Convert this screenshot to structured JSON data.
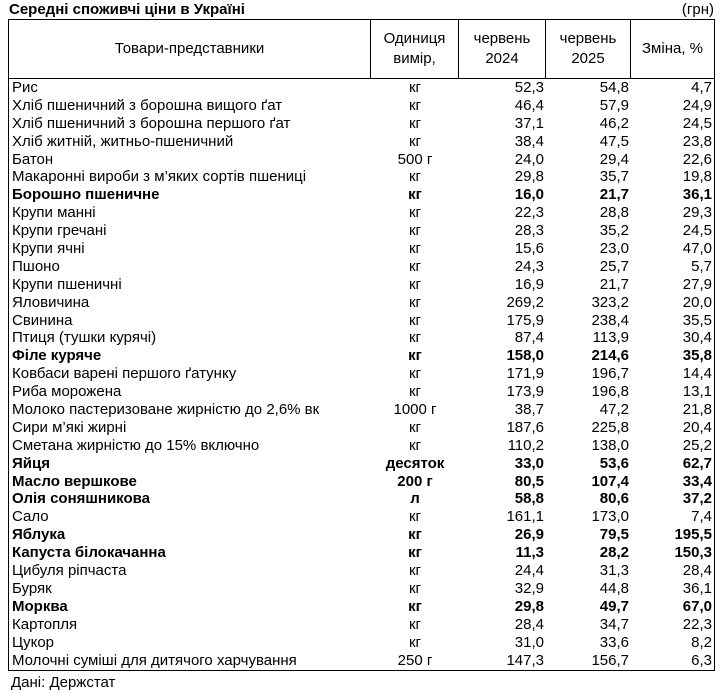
{
  "title": "Середні споживчі ціни в Україні",
  "currency_note": "(грн)",
  "headers": {
    "product": "Товари-представники",
    "unit": "Одиниця вимір,",
    "june2024": "червень 2024",
    "june2025": "червень 2025",
    "change": "Зміна, %"
  },
  "rows": [
    {
      "name": "Рис",
      "unit": "кг",
      "v2024": "52,3",
      "v2025": "54,8",
      "change": "4,7",
      "bold": false
    },
    {
      "name": "Хліб пшеничний з борошна вищого ґат",
      "unit": "кг",
      "v2024": "46,4",
      "v2025": "57,9",
      "change": "24,9",
      "bold": false
    },
    {
      "name": "Хліб пшеничний з борошна першого ґат",
      "unit": "кг",
      "v2024": "37,1",
      "v2025": "46,2",
      "change": "24,5",
      "bold": false
    },
    {
      "name": "Хліб житній, житньо-пшеничний",
      "unit": "кг",
      "v2024": "38,4",
      "v2025": "47,5",
      "change": "23,8",
      "bold": false
    },
    {
      "name": "Батон",
      "unit": "500 г",
      "v2024": "24,0",
      "v2025": "29,4",
      "change": "22,6",
      "bold": false
    },
    {
      "name": "Макаронні вироби з м’яких сортів пшениці",
      "unit": "кг",
      "v2024": "29,8",
      "v2025": "35,7",
      "change": "19,8",
      "bold": false
    },
    {
      "name": "Борошно пшеничне",
      "unit": "кг",
      "v2024": "16,0",
      "v2025": "21,7",
      "change": "36,1",
      "bold": true
    },
    {
      "name": "Крупи манні",
      "unit": "кг",
      "v2024": "22,3",
      "v2025": "28,8",
      "change": "29,3",
      "bold": false
    },
    {
      "name": "Крупи гречані",
      "unit": "кг",
      "v2024": "28,3",
      "v2025": "35,2",
      "change": "24,5",
      "bold": false
    },
    {
      "name": "Крупи ячні",
      "unit": "кг",
      "v2024": "15,6",
      "v2025": "23,0",
      "change": "47,0",
      "bold": false
    },
    {
      "name": "Пшоно",
      "unit": "кг",
      "v2024": "24,3",
      "v2025": "25,7",
      "change": "5,7",
      "bold": false
    },
    {
      "name": "Крупи пшеничні",
      "unit": "кг",
      "v2024": "16,9",
      "v2025": "21,7",
      "change": "27,9",
      "bold": false
    },
    {
      "name": "Яловичина",
      "unit": "кг",
      "v2024": "269,2",
      "v2025": "323,2",
      "change": "20,0",
      "bold": false
    },
    {
      "name": "Свинина",
      "unit": "кг",
      "v2024": "175,9",
      "v2025": "238,4",
      "change": "35,5",
      "bold": false
    },
    {
      "name": "Птиця (тушки курячі)",
      "unit": "кг",
      "v2024": "87,4",
      "v2025": "113,9",
      "change": "30,4",
      "bold": false
    },
    {
      "name": "Філе куряче",
      "unit": "кг",
      "v2024": "158,0",
      "v2025": "214,6",
      "change": "35,8",
      "bold": true
    },
    {
      "name": "Ковбаси варені першого ґатунку",
      "unit": "кг",
      "v2024": "171,9",
      "v2025": "196,7",
      "change": "14,4",
      "bold": false
    },
    {
      "name": "Риба морожена",
      "unit": "кг",
      "v2024": "173,9",
      "v2025": "196,8",
      "change": "13,1",
      "bold": false
    },
    {
      "name": "Молоко пастеризоване жирністю до 2,6% вк",
      "unit": "1000 г",
      "v2024": "38,7",
      "v2025": "47,2",
      "change": "21,8",
      "bold": false
    },
    {
      "name": "Сири м’які жирні",
      "unit": "кг",
      "v2024": "187,6",
      "v2025": "225,8",
      "change": "20,4",
      "bold": false
    },
    {
      "name": "Сметана жирністю до 15% включно",
      "unit": "кг",
      "v2024": "110,2",
      "v2025": "138,0",
      "change": "25,2",
      "bold": false
    },
    {
      "name": "Яйця",
      "unit": "десяток",
      "v2024": "33,0",
      "v2025": "53,6",
      "change": "62,7",
      "bold": true
    },
    {
      "name": "Масло вершкове",
      "unit": "200 г",
      "v2024": "80,5",
      "v2025": "107,4",
      "change": "33,4",
      "bold": true
    },
    {
      "name": "Олія соняшникова",
      "unit": "л",
      "v2024": "58,8",
      "v2025": "80,6",
      "change": "37,2",
      "bold": true
    },
    {
      "name": "Сало",
      "unit": "кг",
      "v2024": "161,1",
      "v2025": "173,0",
      "change": "7,4",
      "bold": false
    },
    {
      "name": "Яблука",
      "unit": "кг",
      "v2024": "26,9",
      "v2025": "79,5",
      "change": "195,5",
      "bold": true
    },
    {
      "name": "Капуста білокачанна",
      "unit": "кг",
      "v2024": "11,3",
      "v2025": "28,2",
      "change": "150,3",
      "bold": true
    },
    {
      "name": "Цибуля ріпчаста",
      "unit": "кг",
      "v2024": "24,4",
      "v2025": "31,3",
      "change": "28,4",
      "bold": false
    },
    {
      "name": "Буряк",
      "unit": "кг",
      "v2024": "32,9",
      "v2025": "44,8",
      "change": "36,1",
      "bold": false
    },
    {
      "name": "Морква",
      "unit": "кг",
      "v2024": "29,8",
      "v2025": "49,7",
      "change": "67,0",
      "bold": true
    },
    {
      "name": "Картопля",
      "unit": "кг",
      "v2024": "28,4",
      "v2025": "34,7",
      "change": "22,3",
      "bold": false
    },
    {
      "name": "Цукор",
      "unit": "кг",
      "v2024": "31,0",
      "v2025": "33,6",
      "change": "8,2",
      "bold": false
    },
    {
      "name": "Молочні суміші для дитячого харчування",
      "unit": "250 г",
      "v2024": "147,3",
      "v2025": "156,7",
      "change": "6,3",
      "bold": false
    }
  ],
  "source": "Дані: Держстат"
}
